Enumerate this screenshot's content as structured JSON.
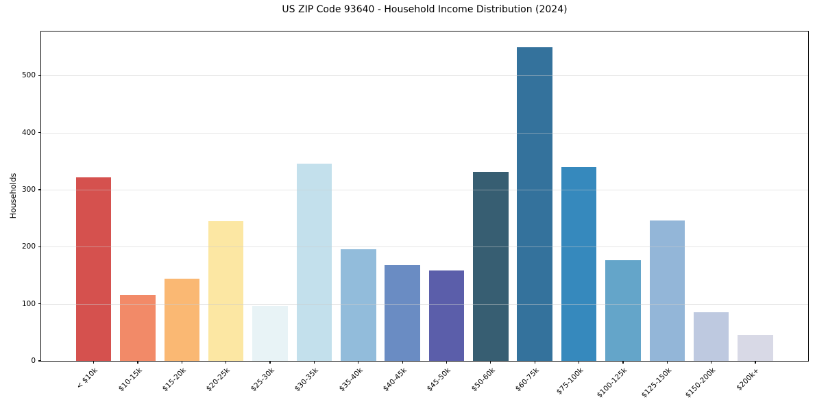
{
  "chart_data": {
    "type": "bar",
    "title": "US ZIP Code 93640 - Household Income Distribution (2024)",
    "xlabel": "",
    "ylabel": "Households",
    "categories": [
      "< $10k",
      "$10-15k",
      "$15-20k",
      "$20-25k",
      "$25-30k",
      "$30-35k",
      "$35-40k",
      "$40-45k",
      "$45-50k",
      "$50-60k",
      "$60-75k",
      "$75-100k",
      "$100-125k",
      "$125-150k",
      "$150-200k",
      "$200k+"
    ],
    "values": [
      321,
      115,
      144,
      245,
      96,
      345,
      195,
      168,
      158,
      331,
      550,
      340,
      176,
      246,
      85,
      46
    ],
    "bar_colors": [
      "#d5514e",
      "#f28a68",
      "#fab873",
      "#fce7a3",
      "#e8f3f6",
      "#c3e0ec",
      "#92bcdb",
      "#6a8cc3",
      "#5b5eaa",
      "#375e72",
      "#34729c",
      "#3689bd",
      "#64a5c9",
      "#93b6d8",
      "#bec9e0",
      "#d8d9e6"
    ],
    "yticks": [
      0,
      100,
      200,
      300,
      400,
      500
    ],
    "ylim": [
      0,
      577
    ],
    "grid": "horizontal-only",
    "legend_position": "none",
    "x_tick_rotation_deg": 45
  },
  "colors": {
    "background": "#ffffff",
    "spine": "#0d0d0d",
    "grid": "#cccccc",
    "grid_alpha": 0.5,
    "text": "#000000"
  }
}
